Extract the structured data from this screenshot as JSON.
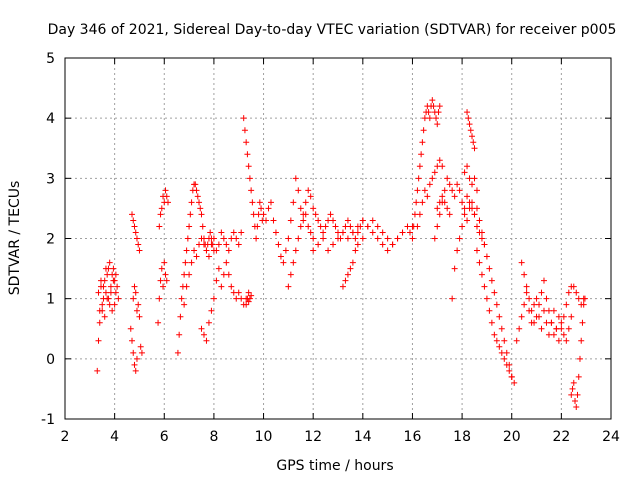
{
  "chart_data": {
    "type": "scatter",
    "title": "Day 346 of 2021, Sidereal Day-to-day VTEC variation (SDTVAR) for receiver p005",
    "xlabel": "GPS time / hours",
    "ylabel": "SDTVAR / TECUs",
    "xlim": [
      2,
      24
    ],
    "ylim": [
      -1,
      5
    ],
    "xticks": [
      2,
      4,
      6,
      8,
      10,
      12,
      14,
      16,
      18,
      20,
      22,
      24
    ],
    "yticks": [
      -1,
      0,
      1,
      2,
      3,
      4,
      5
    ],
    "grid": true,
    "marker": "+",
    "color": "#ff0000",
    "series": [
      {
        "name": "SDTVAR",
        "x": [
          3.3,
          3.35,
          3.4,
          3.45,
          3.5,
          3.55,
          3.6,
          3.65,
          3.7,
          3.75,
          3.8,
          3.85,
          3.9,
          3.95,
          4.0,
          4.05,
          4.1,
          4.15,
          3.4,
          3.5,
          3.6,
          3.7,
          3.8,
          3.9,
          4.0,
          3.35,
          3.45,
          3.55,
          3.65,
          3.75,
          3.85,
          3.95,
          4.05,
          4.7,
          4.75,
          4.8,
          4.85,
          4.9,
          4.95,
          5.0,
          4.65,
          4.7,
          4.75,
          4.8,
          4.85,
          4.9,
          4.75,
          4.8,
          4.85,
          4.9,
          4.95,
          5.0,
          5.05,
          5.1,
          5.75,
          5.8,
          5.85,
          5.9,
          5.95,
          6.0,
          6.05,
          6.1,
          5.8,
          5.85,
          5.9,
          5.95,
          6.0,
          6.05,
          6.1,
          6.15,
          6.55,
          6.6,
          6.65,
          6.7,
          6.75,
          6.8,
          6.85,
          6.9,
          6.95,
          7.0,
          7.05,
          7.1,
          7.15,
          7.2,
          7.25,
          7.3,
          7.35,
          7.4,
          7.45,
          7.5,
          7.55,
          7.6,
          7.65,
          7.7,
          7.75,
          7.8,
          7.85,
          7.9,
          7.95,
          8.0,
          6.8,
          6.9,
          7.0,
          7.1,
          7.2,
          7.3,
          7.4,
          7.5,
          7.6,
          7.7,
          7.8,
          7.9,
          8.0,
          8.1,
          8.2,
          8.3,
          8.4,
          8.5,
          8.6,
          8.7,
          8.8,
          8.9,
          9.0,
          9.1,
          7.5,
          7.6,
          7.7,
          7.8,
          7.9,
          8.0,
          8.1,
          8.2,
          8.3,
          8.4,
          8.5,
          8.6,
          8.7,
          8.8,
          8.9,
          9.0,
          9.1,
          9.2,
          9.3,
          9.4,
          9.2,
          9.25,
          9.3,
          9.35,
          9.4,
          9.45,
          9.5,
          9.55,
          9.6,
          9.65,
          9.7,
          9.75,
          9.8,
          9.85,
          9.9,
          9.95,
          10.0,
          10.1,
          10.2,
          10.3,
          10.4,
          10.5,
          10.6,
          10.7,
          10.8,
          10.9,
          11.0,
          11.1,
          11.2,
          11.3,
          11.4,
          11.5,
          11.6,
          11.7,
          11.8,
          11.9,
          12.0,
          11.0,
          11.1,
          11.2,
          11.3,
          11.4,
          11.5,
          11.6,
          11.7,
          11.8,
          11.9,
          12.0,
          12.1,
          12.2,
          12.3,
          12.4,
          12.5,
          12.6,
          12.7,
          12.8,
          12.9,
          13.0,
          13.1,
          13.2,
          13.3,
          13.4,
          13.5,
          13.6,
          13.7,
          13.8,
          13.9,
          14.0,
          12.0,
          12.2,
          12.4,
          12.6,
          12.8,
          13.0,
          13.2,
          13.4,
          13.6,
          13.8,
          14.0,
          14.2,
          14.4,
          14.6,
          14.8,
          15.0,
          15.2,
          15.4,
          15.6,
          15.8,
          16.0,
          13.2,
          13.3,
          13.4,
          13.5,
          13.6,
          13.7,
          13.8,
          14.0,
          14.2,
          14.4,
          14.6,
          14.8,
          15.0,
          15.2,
          15.4,
          15.6,
          15.8,
          15.9,
          16.0,
          16.05,
          16.1,
          16.15,
          16.2,
          16.25,
          16.3,
          16.35,
          16.4,
          16.45,
          16.5,
          16.55,
          16.6,
          16.65,
          16.7,
          16.75,
          16.8,
          16.85,
          16.9,
          16.95,
          17.0,
          17.05,
          17.1,
          16.2,
          16.3,
          16.4,
          16.5,
          16.6,
          16.7,
          16.8,
          16.9,
          17.0,
          17.1,
          17.2,
          16.9,
          17.0,
          17.1,
          17.2,
          17.3,
          17.4,
          17.5,
          17.6,
          17.7,
          17.8,
          17.9,
          18.0,
          18.1,
          18.2,
          18.3,
          18.4,
          18.5,
          17.6,
          17.7,
          17.8,
          17.9,
          18.0,
          18.1,
          18.2,
          18.3,
          18.4,
          18.5,
          18.6,
          18.7,
          18.8,
          18.9,
          18.2,
          18.25,
          18.3,
          18.35,
          18.4,
          18.45,
          18.5,
          18.6,
          18.7,
          18.8,
          18.9,
          19.0,
          19.1,
          19.2,
          19.3,
          19.4,
          19.5,
          19.6,
          19.7,
          19.8,
          19.9,
          20.0,
          20.1,
          18.6,
          18.7,
          18.8,
          18.9,
          19.0,
          19.1,
          19.2,
          19.3,
          19.4,
          19.5,
          19.6,
          19.7,
          19.8,
          19.9,
          20.0,
          20.2,
          20.3,
          20.4,
          20.5,
          20.6,
          20.7,
          20.8,
          20.9,
          21.0,
          21.1,
          21.2,
          21.3,
          21.4,
          21.5,
          21.6,
          21.7,
          21.8,
          21.9,
          22.0,
          22.1,
          22.2,
          22.3,
          22.4,
          20.4,
          20.5,
          20.6,
          20.7,
          20.8,
          20.9,
          21.0,
          21.1,
          21.2,
          21.3,
          21.4,
          21.5,
          21.6,
          21.7,
          21.8,
          21.9,
          22.0,
          22.1,
          22.2,
          22.3,
          22.4,
          22.4,
          22.45,
          22.5,
          22.55,
          22.6,
          22.65,
          22.7,
          22.75,
          22.8,
          22.85,
          22.9,
          22.95,
          22.5,
          22.6,
          22.7,
          22.8,
          22.9,
          9.3,
          9.35,
          9.4,
          9.45,
          9.5,
          18.1,
          18.2,
          18.3,
          18.4,
          18.5,
          18.6,
          17.0,
          17.1,
          17.2,
          17.3,
          17.4,
          17.5
        ],
        "y": [
          -0.2,
          0.3,
          0.8,
          1.2,
          0.9,
          1.0,
          1.3,
          1.1,
          1.4,
          1.5,
          1.6,
          1.2,
          1.4,
          1.5,
          1.3,
          1.1,
          1.2,
          1.0,
          0.6,
          0.8,
          0.7,
          1.0,
          0.9,
          0.8,
          0.9,
          1.1,
          1.3,
          1.2,
          1.5,
          1.0,
          1.1,
          1.3,
          1.4,
          2.4,
          2.3,
          2.2,
          2.1,
          2.0,
          1.9,
          1.8,
          0.5,
          0.3,
          0.1,
          -0.1,
          -0.2,
          0.0,
          1.0,
          1.2,
          1.1,
          0.8,
          0.9,
          0.7,
          0.2,
          0.1,
          0.6,
          1.0,
          1.3,
          1.5,
          1.2,
          1.6,
          1.4,
          1.3,
          2.2,
          2.4,
          2.5,
          2.7,
          2.6,
          2.8,
          2.7,
          2.6,
          0.1,
          0.4,
          0.7,
          1.0,
          1.2,
          1.4,
          1.6,
          1.8,
          2.0,
          2.2,
          2.4,
          2.6,
          2.8,
          2.9,
          2.9,
          2.8,
          2.7,
          2.6,
          2.5,
          2.4,
          2.2,
          2.0,
          1.9,
          1.8,
          1.9,
          2.0,
          2.1,
          2.0,
          1.9,
          1.8,
          0.9,
          1.2,
          1.4,
          1.6,
          1.8,
          1.7,
          1.9,
          2.0,
          1.9,
          1.8,
          1.7,
          1.9,
          2.0,
          1.8,
          1.9,
          2.1,
          2.0,
          1.9,
          1.8,
          2.0,
          2.1,
          2.0,
          1.9,
          2.1,
          0.5,
          0.4,
          0.3,
          0.6,
          0.8,
          1.0,
          1.3,
          1.5,
          1.2,
          1.4,
          1.6,
          1.4,
          1.2,
          1.1,
          1.0,
          1.1,
          1.0,
          0.9,
          1.0,
          1.1,
          4.0,
          3.8,
          3.6,
          3.4,
          3.2,
          3.0,
          2.8,
          2.6,
          2.4,
          2.2,
          2.0,
          2.2,
          2.4,
          2.6,
          2.5,
          2.3,
          2.4,
          2.3,
          2.5,
          2.6,
          2.3,
          2.1,
          1.9,
          1.7,
          1.6,
          1.8,
          2.0,
          2.3,
          2.6,
          3.0,
          2.8,
          2.5,
          2.3,
          2.4,
          2.2,
          2.1,
          2.0,
          1.2,
          1.4,
          1.6,
          1.8,
          2.0,
          2.2,
          2.4,
          2.6,
          2.8,
          2.7,
          2.5,
          2.4,
          2.3,
          2.2,
          2.1,
          2.2,
          2.3,
          2.4,
          2.3,
          2.2,
          2.1,
          2.0,
          2.1,
          2.2,
          2.3,
          2.2,
          2.1,
          2.0,
          2.1,
          2.2,
          2.3,
          1.8,
          1.9,
          2.0,
          1.8,
          1.9,
          2.0,
          2.1,
          2.0,
          2.1,
          2.2,
          2.3,
          2.2,
          2.1,
          2.0,
          1.9,
          1.8,
          1.9,
          2.0,
          2.1,
          2.2,
          2.2,
          1.2,
          1.3,
          1.4,
          1.5,
          1.6,
          1.8,
          1.9,
          2.0,
          2.2,
          2.3,
          2.2,
          2.1,
          2.0,
          1.9,
          2.0,
          2.1,
          2.2,
          2.1,
          2.0,
          2.2,
          2.4,
          2.6,
          2.8,
          3.0,
          3.2,
          3.4,
          3.6,
          3.8,
          4.0,
          4.1,
          4.2,
          4.1,
          4.0,
          4.2,
          4.3,
          4.2,
          4.1,
          4.0,
          3.9,
          4.1,
          4.2,
          2.2,
          2.4,
          2.6,
          2.8,
          2.7,
          2.9,
          3.0,
          3.1,
          3.2,
          3.3,
          3.2,
          2.0,
          2.2,
          2.4,
          2.6,
          2.8,
          3.0,
          2.9,
          2.8,
          2.7,
          2.9,
          2.8,
          2.6,
          2.5,
          2.7,
          2.6,
          2.5,
          2.4,
          1.0,
          1.5,
          1.8,
          2.0,
          2.2,
          2.4,
          2.3,
          2.5,
          2.6,
          2.4,
          2.2,
          2.1,
          2.0,
          1.9,
          4.1,
          4.0,
          3.9,
          3.8,
          3.7,
          3.6,
          3.5,
          2.5,
          2.3,
          2.1,
          1.9,
          1.7,
          1.5,
          1.3,
          1.1,
          0.9,
          0.7,
          0.5,
          0.3,
          0.1,
          -0.1,
          -0.3,
          -0.4,
          1.8,
          1.6,
          1.4,
          1.2,
          1.0,
          0.8,
          0.6,
          0.4,
          0.3,
          0.2,
          0.1,
          0.0,
          -0.1,
          -0.2,
          -0.3,
          0.3,
          0.5,
          0.7,
          0.9,
          1.1,
          0.8,
          0.6,
          0.9,
          1.0,
          0.7,
          0.5,
          0.8,
          0.6,
          0.4,
          0.6,
          0.8,
          0.5,
          0.3,
          0.5,
          0.7,
          0.9,
          1.1,
          1.2,
          1.6,
          1.4,
          1.2,
          1.0,
          0.8,
          0.6,
          0.7,
          0.9,
          1.1,
          1.3,
          1.0,
          0.8,
          0.6,
          0.4,
          0.5,
          0.7,
          0.6,
          0.4,
          0.3,
          0.5,
          0.7,
          -0.6,
          -0.5,
          -0.4,
          -0.7,
          -0.8,
          -0.6,
          -0.3,
          0.0,
          0.3,
          0.6,
          0.9,
          1.0,
          1.2,
          1.1,
          1.0,
          0.9,
          1.0,
          0.9,
          1.0,
          0.95,
          1.0,
          1.05,
          3.1,
          3.2,
          3.0,
          2.9,
          3.0,
          2.8,
          2.5,
          2.6,
          2.7,
          2.6,
          2.5,
          2.4
        ]
      }
    ]
  }
}
